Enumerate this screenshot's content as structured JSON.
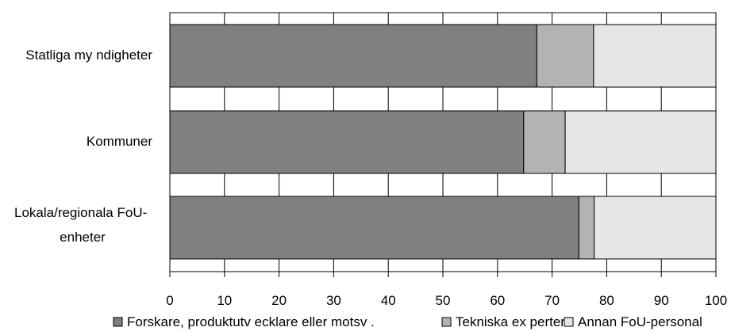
{
  "chart_data": {
    "type": "bar",
    "orientation": "horizontal",
    "stacked": true,
    "categories": [
      "Statliga my ndigheter",
      "Kommuner",
      "Lokala/regionala FoU-enheter"
    ],
    "series": [
      {
        "name": "Forskare, produktutv ecklare eller motsv .",
        "color": "#808080",
        "values": [
          67.2,
          64.8,
          74.9
        ]
      },
      {
        "name": "Tekniska ex perter",
        "color": "#b3b3b3",
        "values": [
          10.4,
          7.6,
          2.8
        ]
      },
      {
        "name": "Annan FoU-personal",
        "color": "#e6e6e6",
        "values": [
          22.4,
          27.6,
          22.3
        ]
      }
    ],
    "xlim": [
      0,
      100
    ],
    "xticks": [
      0,
      10,
      20,
      30,
      40,
      50,
      60,
      70,
      80,
      90,
      100
    ],
    "grid": true,
    "legend_position": "bottom"
  }
}
